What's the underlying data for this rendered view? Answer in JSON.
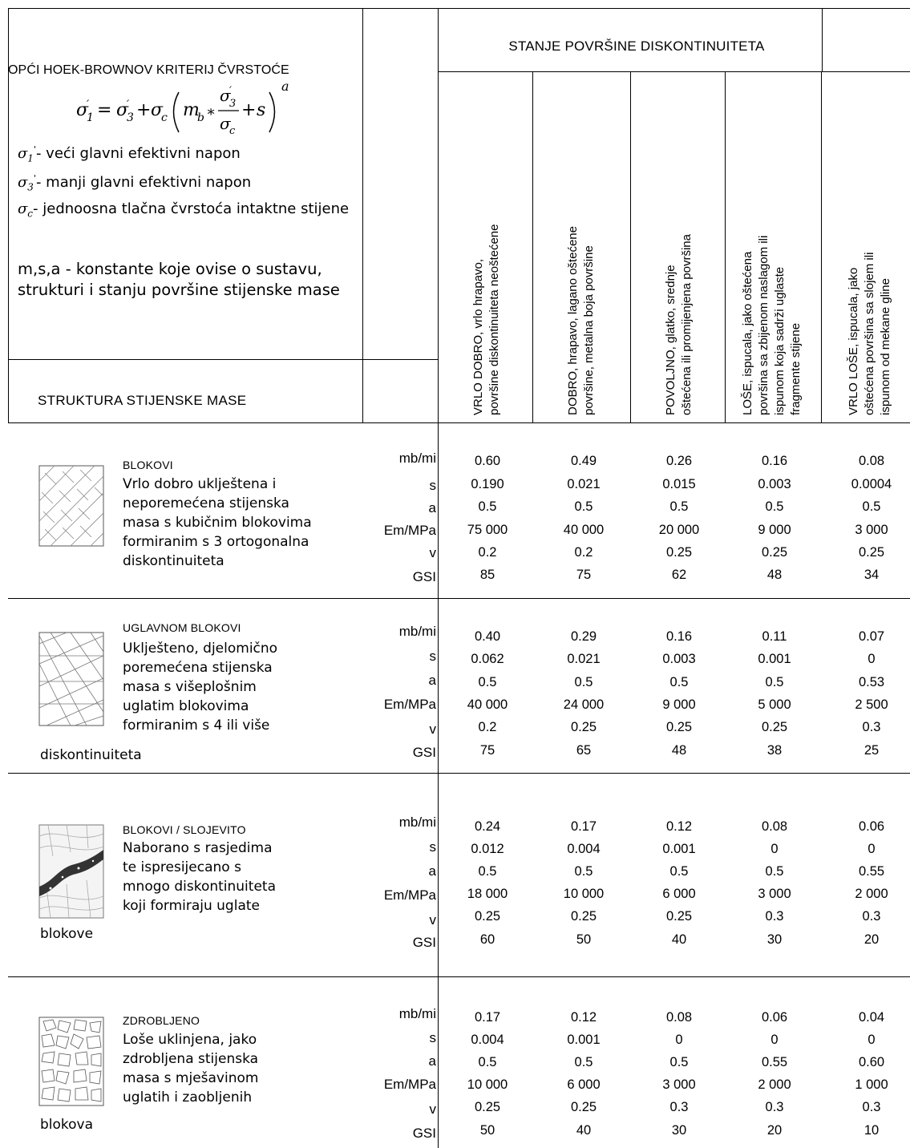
{
  "header": {
    "criterion_title": "OPĆI HOEK-BROWNOV KRITERIJ ČVRSTOĆE",
    "legend": {
      "sigma1": "- veći glavni efektivni napon",
      "sigma3": "- manji glavni efektivni napon",
      "sigmac": "- jednoosna tlačna čvrstoća intaktne stijene",
      "constants": "m,s,a - konstante koje ovise o sustavu, strukturi i stanju površine stijenske mase"
    },
    "surface_condition_title": "STANJE POVRŠINE DISKONTINUITETA",
    "structure_title": "STRUKTURA STIJENSKE MASE"
  },
  "columns": [
    {
      "label": "VRLO DOBRO, vrlo hrapavo,\npovršine diskontinuiteta neoštećene"
    },
    {
      "label": "DOBRO, hrapavo, lagano oštećene\npovršine, metalna boja površine"
    },
    {
      "label": "POVOLJNO, glatko, srednje\noštećena ili promijenjena površina"
    },
    {
      "label": "LOŠE, ispucala, jako oštećena\npovršina sa zbijenom naslagom ili\nispunom koja sadrži uglaste\nfragmente stijene"
    },
    {
      "label": "VRLO LOŠE, ispucala, jako\noštećena površina sa slojem ili\nispunom od mekane gline"
    }
  ],
  "param_labels": [
    "mb/mi",
    "s",
    "a",
    "Em/MPa",
    "v",
    "GSI"
  ],
  "rows": [
    {
      "title": "BLOKOVI",
      "description": "Vrlo dobro uklještena i\nneporemećena stijenska\nmasa s kubičnim blokovima\nformiranim s 3 ortogonalna\ndiskontinuiteta",
      "tail": "",
      "icon": "blocky-cubic-joints-icon",
      "values": [
        [
          "0.60",
          "0.190",
          "0.5",
          "75 000",
          "0.2",
          "85"
        ],
        [
          "0.49",
          "0.021",
          "0.5",
          "40 000",
          "0.2",
          "75"
        ],
        [
          "0.26",
          "0.015",
          "0.5",
          "20 000",
          "0.25",
          "62"
        ],
        [
          "0.16",
          "0.003",
          "0.5",
          "9 000",
          "0.25",
          "48"
        ],
        [
          "0.08",
          "0.0004",
          "0.5",
          "3 000",
          "0.25",
          "34"
        ]
      ]
    },
    {
      "title": "UGLAVNOM BLOKOVI",
      "description": "Uklješteno, djelomično\nporemećena stijenska\nmasa s višeplošnim\nuglatim blokovima\nformiranim s 4 ili više",
      "tail": "diskontinuiteta",
      "icon": "very-blocky-joints-icon",
      "values": [
        [
          "0.40",
          "0.062",
          "0.5",
          "40 000",
          "0.2",
          "75"
        ],
        [
          "0.29",
          "0.021",
          "0.5",
          "24 000",
          "0.25",
          "65"
        ],
        [
          "0.16",
          "0.003",
          "0.5",
          "9 000",
          "0.25",
          "48"
        ],
        [
          "0.11",
          "0.001",
          "0.5",
          "5 000",
          "0.25",
          "38"
        ],
        [
          "0.07",
          "0",
          "0.53",
          "2 500",
          "0.3",
          "25"
        ]
      ]
    },
    {
      "title": "BLOKOVI / SLOJEVITO",
      "description": "Naborano s rasjedima\nte ispresijecano s\nmnogo diskontinuiteta\nkoji formiraju uglate",
      "tail": "blokove",
      "icon": "folded-faulted-icon",
      "values": [
        [
          "0.24",
          "0.012",
          "0.5",
          "18 000",
          "0.25",
          "60"
        ],
        [
          "0.17",
          "0.004",
          "0.5",
          "10 000",
          "0.25",
          "50"
        ],
        [
          "0.12",
          "0.001",
          "0.5",
          "6 000",
          "0.25",
          "40"
        ],
        [
          "0.08",
          "0",
          "0.5",
          "3 000",
          "0.3",
          "30"
        ],
        [
          "0.06",
          "0",
          "0.55",
          "2 000",
          "0.3",
          "20"
        ]
      ]
    },
    {
      "title": "ZDROBLJENO",
      "description": "Loše uklinjena, jako\nzdrobljena stijenska\nmasa s mješavinom\nuglatih i zaobljenih",
      "tail": "blokova",
      "icon": "crushed-rock-icon",
      "values": [
        [
          "0.17",
          "0.004",
          "0.5",
          "10 000",
          "0.25",
          "50"
        ],
        [
          "0.12",
          "0.001",
          "0.5",
          "6 000",
          "0.25",
          "40"
        ],
        [
          "0.08",
          "0",
          "0.5",
          "3 000",
          "0.3",
          "30"
        ],
        [
          "0.06",
          "0",
          "0.55",
          "2 000",
          "0.3",
          "20"
        ],
        [
          "0.04",
          "0",
          "0.60",
          "1 000",
          "0.3",
          "10"
        ]
      ]
    }
  ]
}
